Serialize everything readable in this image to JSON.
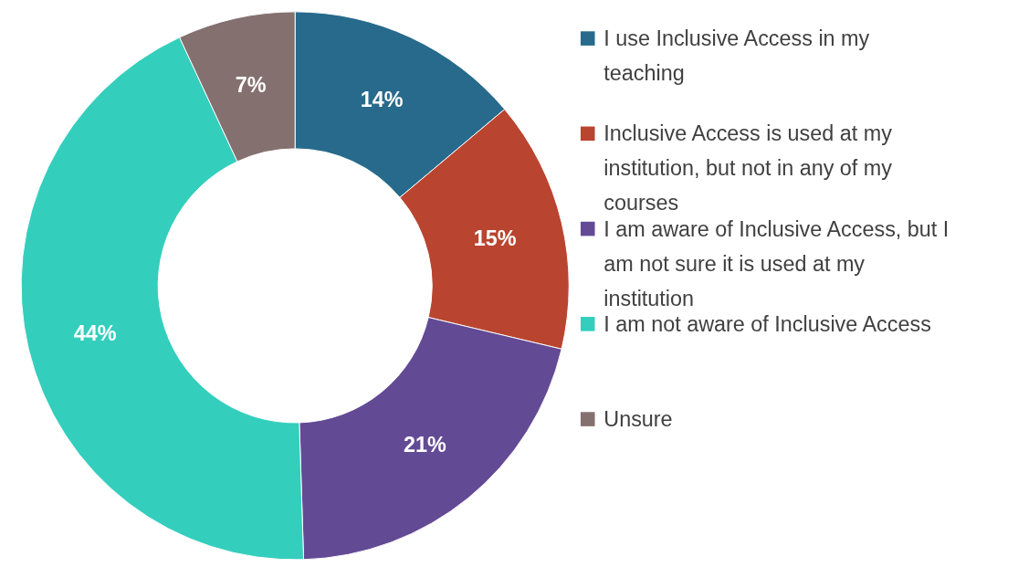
{
  "chart_data": {
    "type": "donut",
    "categories": [
      "I use Inclusive Access in my teaching",
      "Inclusive Access is used at my institution, but not in any of my courses",
      "I am aware of Inclusive Access, but I am not sure it is used at my institution",
      "I am not aware of Inclusive Access",
      "Unsure"
    ],
    "values": [
      14,
      15,
      21,
      44,
      7
    ],
    "colors": [
      "#276a8c",
      "#b94530",
      "#634a94",
      "#34cebd",
      "#84716f"
    ],
    "value_labels": [
      "14%",
      "15%",
      "21%",
      "44%",
      "7%"
    ],
    "legend": "right"
  }
}
